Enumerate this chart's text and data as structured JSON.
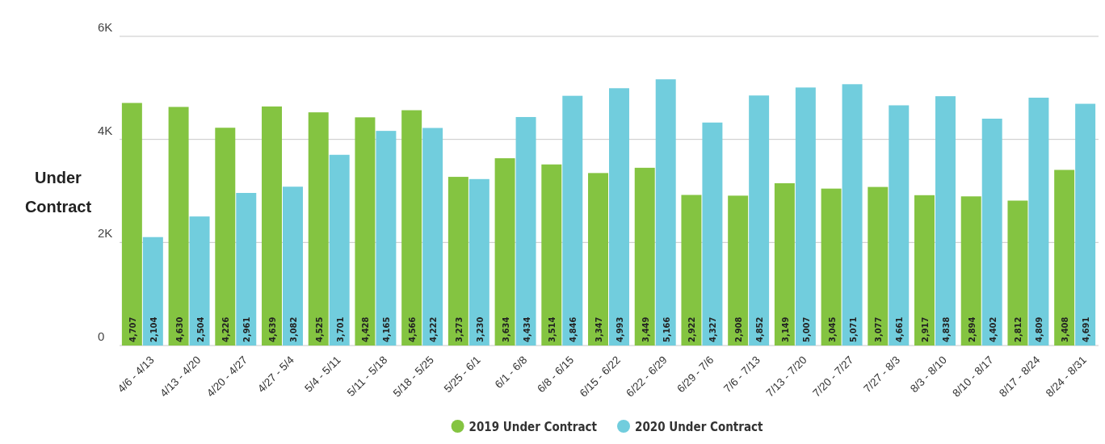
{
  "chart_data": {
    "type": "bar",
    "ylabel": "Under Contract",
    "categories": [
      "4/6 - 4/13",
      "4/13 - 4/20",
      "4/20 - 4/27",
      "4/27 - 5/4",
      "5/4 - 5/11",
      "5/11 - 5/18",
      "5/18 - 5/25",
      "5/25 - 6/1",
      "6/1 - 6/8",
      "6/8 - 6/15",
      "6/15 - 6/22",
      "6/22 - 6/29",
      "6/29 - 7/6",
      "7/6 - 7/13",
      "7/13 - 7/20",
      "7/20 - 7/27",
      "7/27 - 8/3",
      "8/3 - 8/10",
      "8/10 - 8/17",
      "8/17 - 8/24",
      "8/24 - 8/31"
    ],
    "series": [
      {
        "name": "2019 Under Contract",
        "color": "#84c441",
        "values": [
          4707,
          4630,
          4226,
          4639,
          4525,
          4428,
          4566,
          3273,
          3634,
          3514,
          3347,
          3449,
          2922,
          2908,
          3149,
          3045,
          3077,
          2917,
          2894,
          2812,
          3408
        ],
        "value_labels": [
          "4,707",
          "4,630",
          "4,226",
          "4,639",
          "4,525",
          "4,428",
          "4,566",
          "3,273",
          "3,634",
          "3,514",
          "3,347",
          "3,449",
          "2,922",
          "2,908",
          "3,149",
          "3,045",
          "3,077",
          "2,917",
          "2,894",
          "2,812",
          "3,408"
        ]
      },
      {
        "name": "2020 Under Contract",
        "color": "#71cddd",
        "values": [
          2104,
          2504,
          2961,
          3082,
          3701,
          4165,
          4222,
          3230,
          4434,
          4846,
          4993,
          5166,
          4327,
          4852,
          5007,
          5071,
          4661,
          4838,
          4402,
          4809,
          4691
        ],
        "value_labels": [
          "2,104",
          "2,504",
          "2,961",
          "3,082",
          "3,701",
          "4,165",
          "4,222",
          "3,230",
          "4,434",
          "4,846",
          "4,993",
          "5,166",
          "4,327",
          "4,852",
          "5,007",
          "5,071",
          "4,661",
          "4,838",
          "4,402",
          "4,809",
          "4,691"
        ]
      }
    ],
    "ylim": [
      0,
      6000
    ],
    "yticks": [
      {
        "value": 0,
        "label": "0"
      },
      {
        "value": 2000,
        "label": "2K"
      },
      {
        "value": 4000,
        "label": "4K"
      },
      {
        "value": 6000,
        "label": "6K"
      }
    ],
    "grid": "y",
    "legend": "bottom"
  }
}
